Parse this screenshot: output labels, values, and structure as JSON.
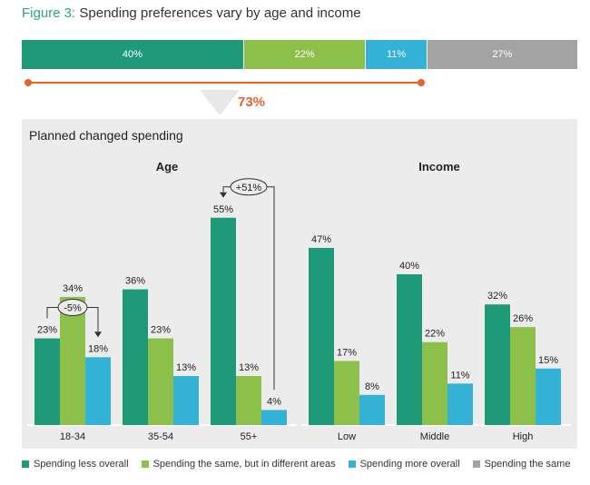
{
  "figure": {
    "number": "Figure 3:",
    "title": "Spending preferences vary by age and income"
  },
  "colors": {
    "less": "#1e9a78",
    "same_diff": "#8cc04b",
    "more": "#33b2d6",
    "same": "#a3a3a3",
    "accent": "#e8622a",
    "number": "#2aa774"
  },
  "overall": {
    "segments": [
      {
        "label": "40%",
        "value": 40,
        "color": "#1e9a78"
      },
      {
        "label": "22%",
        "value": 22,
        "color": "#8cc04b"
      },
      {
        "label": "11%",
        "value": 11,
        "color": "#33b2d6"
      },
      {
        "label": "27%",
        "value": 27,
        "color": "#a3a3a3"
      }
    ],
    "bracket_value": "73%"
  },
  "chart_data": {
    "type": "bar",
    "title": "Planned changed spending",
    "ylim": [
      0,
      60
    ],
    "series": [
      {
        "name": "Spending less overall",
        "color": "#1e9a78"
      },
      {
        "name": "Spending the same, but in different areas",
        "color": "#8cc04b"
      },
      {
        "name": "Spending more overall",
        "color": "#33b2d6"
      }
    ],
    "groups": [
      {
        "title": "Age",
        "categories": [
          "18-34",
          "35-54",
          "55+"
        ],
        "values": [
          [
            23,
            34,
            18
          ],
          [
            36,
            23,
            13
          ],
          [
            55,
            13,
            4
          ]
        ],
        "labels": [
          [
            "23%",
            "34%",
            "18%"
          ],
          [
            "36%",
            "23%",
            "13%"
          ],
          [
            "55%",
            "13%",
            "4%"
          ]
        ],
        "annotations": [
          {
            "text": "-5%",
            "category": 0,
            "from": 0,
            "to": 2
          },
          {
            "text": "+51%",
            "category": 2,
            "from": 2,
            "to": 0
          }
        ]
      },
      {
        "title": "Income",
        "categories": [
          "Low",
          "Middle",
          "High"
        ],
        "values": [
          [
            47,
            17,
            8
          ],
          [
            40,
            22,
            11
          ],
          [
            32,
            26,
            15
          ]
        ],
        "labels": [
          [
            "47%",
            "17%",
            "8%"
          ],
          [
            "40%",
            "22%",
            "11%"
          ],
          [
            "32%",
            "26%",
            "15%"
          ]
        ],
        "annotations": []
      }
    ]
  },
  "legend": [
    {
      "label": "Spending less overall",
      "color": "#1e9a78"
    },
    {
      "label": "Spending the same, but in different areas",
      "color": "#8cc04b"
    },
    {
      "label": "Spending more overall",
      "color": "#33b2d6"
    },
    {
      "label": "Spending the same",
      "color": "#a3a3a3"
    }
  ]
}
